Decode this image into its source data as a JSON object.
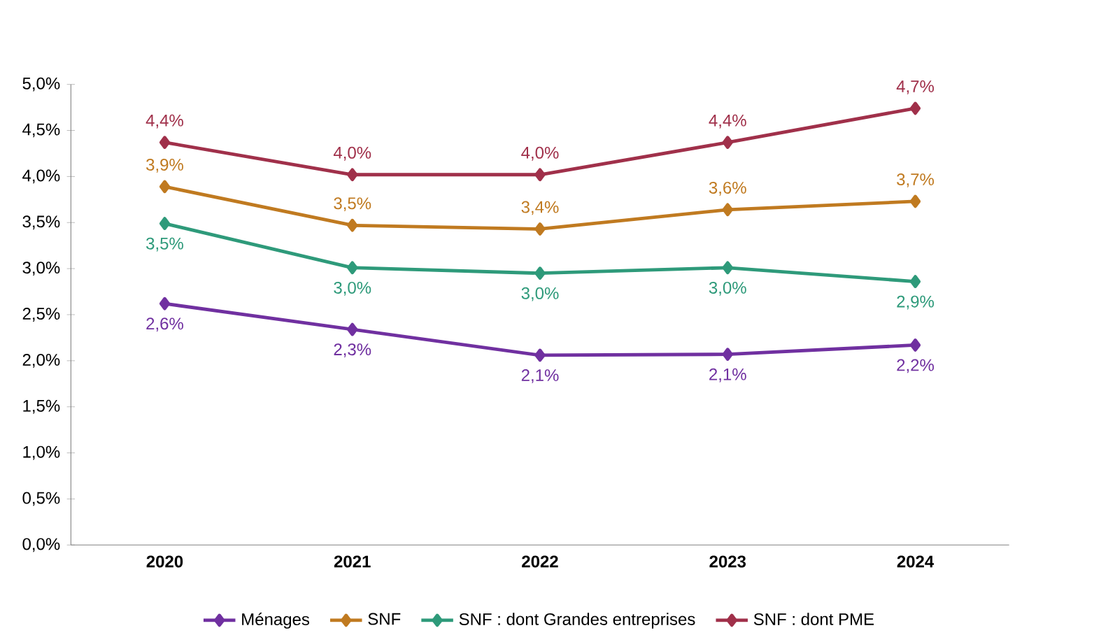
{
  "chart_data": {
    "type": "line",
    "categories": [
      "2020",
      "2021",
      "2022",
      "2023",
      "2024"
    ],
    "series": [
      {
        "name": "Ménages",
        "color": "#7030a0",
        "values": [
          2.62,
          2.34,
          2.06,
          2.07,
          2.17
        ],
        "value_labels": [
          "2,6%",
          "2,3%",
          "2,1%",
          "2,1%",
          "2,2%"
        ]
      },
      {
        "name": "SNF",
        "color": "#c07a20",
        "values": [
          3.89,
          3.47,
          3.43,
          3.64,
          3.73
        ],
        "value_labels": [
          "3,9%",
          "3,5%",
          "3,4%",
          "3,6%",
          "3,7%"
        ]
      },
      {
        "name": "SNF : dont Grandes entreprises",
        "color": "#2e9a7a",
        "values": [
          3.49,
          3.01,
          2.95,
          3.01,
          2.86
        ],
        "value_labels": [
          "3,5%",
          "3,0%",
          "3,0%",
          "3,0%",
          "2,9%"
        ]
      },
      {
        "name": "SNF : dont PME",
        "color": "#a0304a",
        "values": [
          4.37,
          4.02,
          4.02,
          4.37,
          4.74
        ],
        "value_labels": [
          "4,4%",
          "4,0%",
          "4,0%",
          "4,4%",
          "4,7%"
        ]
      }
    ],
    "ylim": [
      0,
      5
    ],
    "yticks": [
      {
        "value": 0,
        "label": "0,0%"
      },
      {
        "value": 0.5,
        "label": "0,5%"
      },
      {
        "value": 1,
        "label": "1,0%"
      },
      {
        "value": 1.5,
        "label": "1,5%"
      },
      {
        "value": 2,
        "label": "2,0%"
      },
      {
        "value": 2.5,
        "label": "2,5%"
      },
      {
        "value": 3,
        "label": "3,0%"
      },
      {
        "value": 3.5,
        "label": "3,5%"
      },
      {
        "value": 4,
        "label": "4,0%"
      },
      {
        "value": 4.5,
        "label": "4,5%"
      },
      {
        "value": 5,
        "label": "5,0%"
      }
    ],
    "grid": false,
    "legend": "bottom",
    "marker": "diamond",
    "line_style": "solid"
  }
}
